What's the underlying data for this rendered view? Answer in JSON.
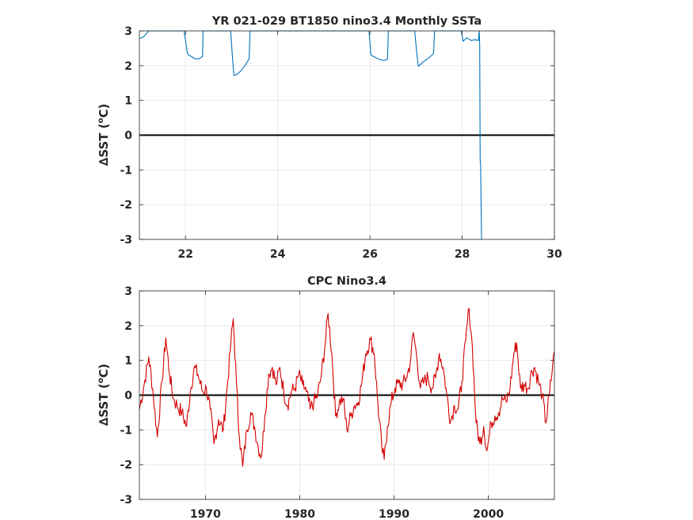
{
  "chart_data": [
    {
      "type": "line",
      "title": "YR 021-029 BT1850 nino3.4 Monthly SSTa",
      "xlabel": "",
      "ylabel": "∆SST (ºC)",
      "ylabel_parts": {
        "prefix": "∆SST (",
        "sup": "o",
        "suffix": "C)"
      },
      "xlim": [
        21,
        30
      ],
      "ylim": [
        -3,
        3
      ],
      "xticks": [
        22,
        24,
        26,
        28,
        30
      ],
      "xtick_labels": [
        "22",
        "24",
        "26",
        "28",
        "30"
      ],
      "yticks": [
        -3,
        -2,
        -1,
        0,
        1,
        2,
        3
      ],
      "ytick_labels": [
        "-3",
        "-2",
        "-1",
        "0",
        "1",
        "2",
        "3"
      ],
      "grid": true,
      "zero_line": true,
      "series": [
        {
          "color": "#0072BD",
          "points": [
            [
              21.0,
              2.78
            ],
            [
              21.08,
              2.82
            ],
            [
              21.15,
              2.92
            ],
            [
              21.2,
              3.0
            ],
            [
              21.97,
              3.0
            ],
            [
              22.03,
              2.45
            ],
            [
              22.05,
              2.32
            ],
            [
              22.12,
              2.27
            ],
            [
              22.2,
              2.2
            ],
            [
              22.3,
              2.2
            ],
            [
              22.37,
              2.27
            ],
            [
              22.38,
              3.0
            ],
            [
              22.98,
              3.0
            ],
            [
              23.02,
              2.2
            ],
            [
              23.05,
              1.72
            ],
            [
              23.12,
              1.75
            ],
            [
              23.2,
              1.85
            ],
            [
              23.3,
              2.02
            ],
            [
              23.38,
              2.2
            ],
            [
              23.4,
              3.0
            ],
            [
              25.98,
              3.0
            ],
            [
              26.02,
              2.3
            ],
            [
              26.1,
              2.25
            ],
            [
              26.2,
              2.18
            ],
            [
              26.3,
              2.15
            ],
            [
              26.38,
              2.18
            ],
            [
              26.4,
              3.0
            ],
            [
              26.97,
              3.0
            ],
            [
              27.02,
              2.3
            ],
            [
              27.05,
              1.98
            ],
            [
              27.15,
              2.1
            ],
            [
              27.3,
              2.25
            ],
            [
              27.38,
              2.35
            ],
            [
              27.4,
              3.0
            ],
            [
              27.98,
              3.0
            ],
            [
              28.02,
              2.7
            ],
            [
              28.06,
              2.75
            ],
            [
              28.1,
              2.8
            ],
            [
              28.14,
              2.77
            ],
            [
              28.2,
              2.72
            ],
            [
              28.28,
              2.75
            ],
            [
              28.35,
              2.72
            ],
            [
              28.37,
              3.0
            ],
            [
              28.38,
              2.6
            ],
            [
              28.39,
              -0.7
            ],
            [
              28.4,
              -0.85
            ],
            [
              28.42,
              -3.0
            ]
          ]
        }
      ]
    },
    {
      "type": "line",
      "title": "CPC Nino3.4",
      "xlabel": "",
      "ylabel": "∆SST (ºC)",
      "ylabel_parts": {
        "prefix": "∆SST (",
        "sup": "o",
        "suffix": "C)"
      },
      "xlim": [
        1963,
        2007
      ],
      "ylim": [
        -3,
        3
      ],
      "xticks": [
        1970,
        1980,
        1990,
        2000
      ],
      "xtick_labels": [
        "1970",
        "1980",
        "1990",
        "2000"
      ],
      "yticks": [
        -3,
        -2,
        -1,
        0,
        1,
        2,
        3
      ],
      "ytick_labels": [
        "-3",
        "-2",
        "-1",
        "0",
        "1",
        "2",
        "3"
      ],
      "grid": true,
      "zero_line": true,
      "series": [
        {
          "color": "#D40000",
          "anchors": [
            [
              1963.0,
              -0.4
            ],
            [
              1963.5,
              0.3
            ],
            [
              1964.0,
              1.1
            ],
            [
              1964.4,
              0.2
            ],
            [
              1964.9,
              -1.2
            ],
            [
              1965.4,
              0.4
            ],
            [
              1965.8,
              1.65
            ],
            [
              1966.2,
              0.6
            ],
            [
              1966.6,
              -0.1
            ],
            [
              1967.0,
              -0.3
            ],
            [
              1967.5,
              -0.5
            ],
            [
              1968.0,
              -0.9
            ],
            [
              1968.4,
              0.1
            ],
            [
              1968.8,
              0.8
            ],
            [
              1969.2,
              0.6
            ],
            [
              1969.7,
              0.1
            ],
            [
              1970.1,
              0.2
            ],
            [
              1970.5,
              -0.4
            ],
            [
              1970.9,
              -1.4
            ],
            [
              1971.4,
              -0.7
            ],
            [
              1971.9,
              -1.0
            ],
            [
              1972.3,
              0.2
            ],
            [
              1972.7,
              1.5
            ],
            [
              1972.95,
              2.2
            ],
            [
              1973.3,
              0.3
            ],
            [
              1973.6,
              -1.2
            ],
            [
              1973.95,
              -2.05
            ],
            [
              1974.4,
              -1.0
            ],
            [
              1974.8,
              -0.5
            ],
            [
              1975.2,
              -0.9
            ],
            [
              1975.6,
              -1.5
            ],
            [
              1975.95,
              -1.75
            ],
            [
              1976.3,
              -0.6
            ],
            [
              1976.7,
              0.6
            ],
            [
              1977.1,
              0.8
            ],
            [
              1977.5,
              0.3
            ],
            [
              1977.9,
              0.8
            ],
            [
              1978.3,
              0.1
            ],
            [
              1978.7,
              -0.3
            ],
            [
              1979.1,
              0.1
            ],
            [
              1979.5,
              0.2
            ],
            [
              1979.9,
              0.6
            ],
            [
              1980.3,
              0.3
            ],
            [
              1980.7,
              0.1
            ],
            [
              1981.1,
              -0.4
            ],
            [
              1981.5,
              -0.2
            ],
            [
              1981.9,
              0.0
            ],
            [
              1982.3,
              0.6
            ],
            [
              1982.7,
              1.5
            ],
            [
              1983.0,
              2.35
            ],
            [
              1983.4,
              1.2
            ],
            [
              1983.8,
              -0.6
            ],
            [
              1984.2,
              -0.2
            ],
            [
              1984.6,
              -0.1
            ],
            [
              1985.0,
              -1.0
            ],
            [
              1985.4,
              -0.6
            ],
            [
              1985.8,
              -0.3
            ],
            [
              1986.2,
              -0.2
            ],
            [
              1986.6,
              0.4
            ],
            [
              1987.0,
              1.2
            ],
            [
              1987.5,
              1.6
            ],
            [
              1987.9,
              1.2
            ],
            [
              1988.3,
              -0.3
            ],
            [
              1988.7,
              -1.5
            ],
            [
              1988.95,
              -1.85
            ],
            [
              1989.3,
              -0.9
            ],
            [
              1989.7,
              -0.2
            ],
            [
              1990.1,
              0.2
            ],
            [
              1990.5,
              0.35
            ],
            [
              1990.9,
              0.3
            ],
            [
              1991.3,
              0.5
            ],
            [
              1991.7,
              0.9
            ],
            [
              1992.05,
              1.8
            ],
            [
              1992.4,
              1.1
            ],
            [
              1992.8,
              0.2
            ],
            [
              1993.2,
              0.4
            ],
            [
              1993.6,
              0.5
            ],
            [
              1994.0,
              0.2
            ],
            [
              1994.4,
              0.5
            ],
            [
              1994.8,
              1.2
            ],
            [
              1995.2,
              0.8
            ],
            [
              1995.6,
              0.0
            ],
            [
              1996.0,
              -0.75
            ],
            [
              1996.4,
              -0.3
            ],
            [
              1996.8,
              -0.4
            ],
            [
              1997.2,
              0.4
            ],
            [
              1997.6,
              1.6
            ],
            [
              1997.95,
              2.5
            ],
            [
              1998.3,
              1.4
            ],
            [
              1998.7,
              -0.8
            ],
            [
              1999.1,
              -1.4
            ],
            [
              1999.5,
              -0.9
            ],
            [
              1999.85,
              -1.6
            ],
            [
              2000.3,
              -0.8
            ],
            [
              2000.7,
              -0.6
            ],
            [
              2001.1,
              -0.5
            ],
            [
              2001.5,
              -0.1
            ],
            [
              2001.9,
              -0.2
            ],
            [
              2002.3,
              0.2
            ],
            [
              2002.7,
              1.2
            ],
            [
              2003.0,
              1.5
            ],
            [
              2003.4,
              0.2
            ],
            [
              2003.8,
              0.3
            ],
            [
              2004.2,
              0.2
            ],
            [
              2004.6,
              0.7
            ],
            [
              2004.9,
              0.8
            ],
            [
              2005.3,
              0.4
            ],
            [
              2005.7,
              0.0
            ],
            [
              2006.1,
              -0.8
            ],
            [
              2006.5,
              0.1
            ],
            [
              2006.8,
              0.8
            ],
            [
              2007.0,
              1.25
            ]
          ]
        }
      ]
    }
  ]
}
